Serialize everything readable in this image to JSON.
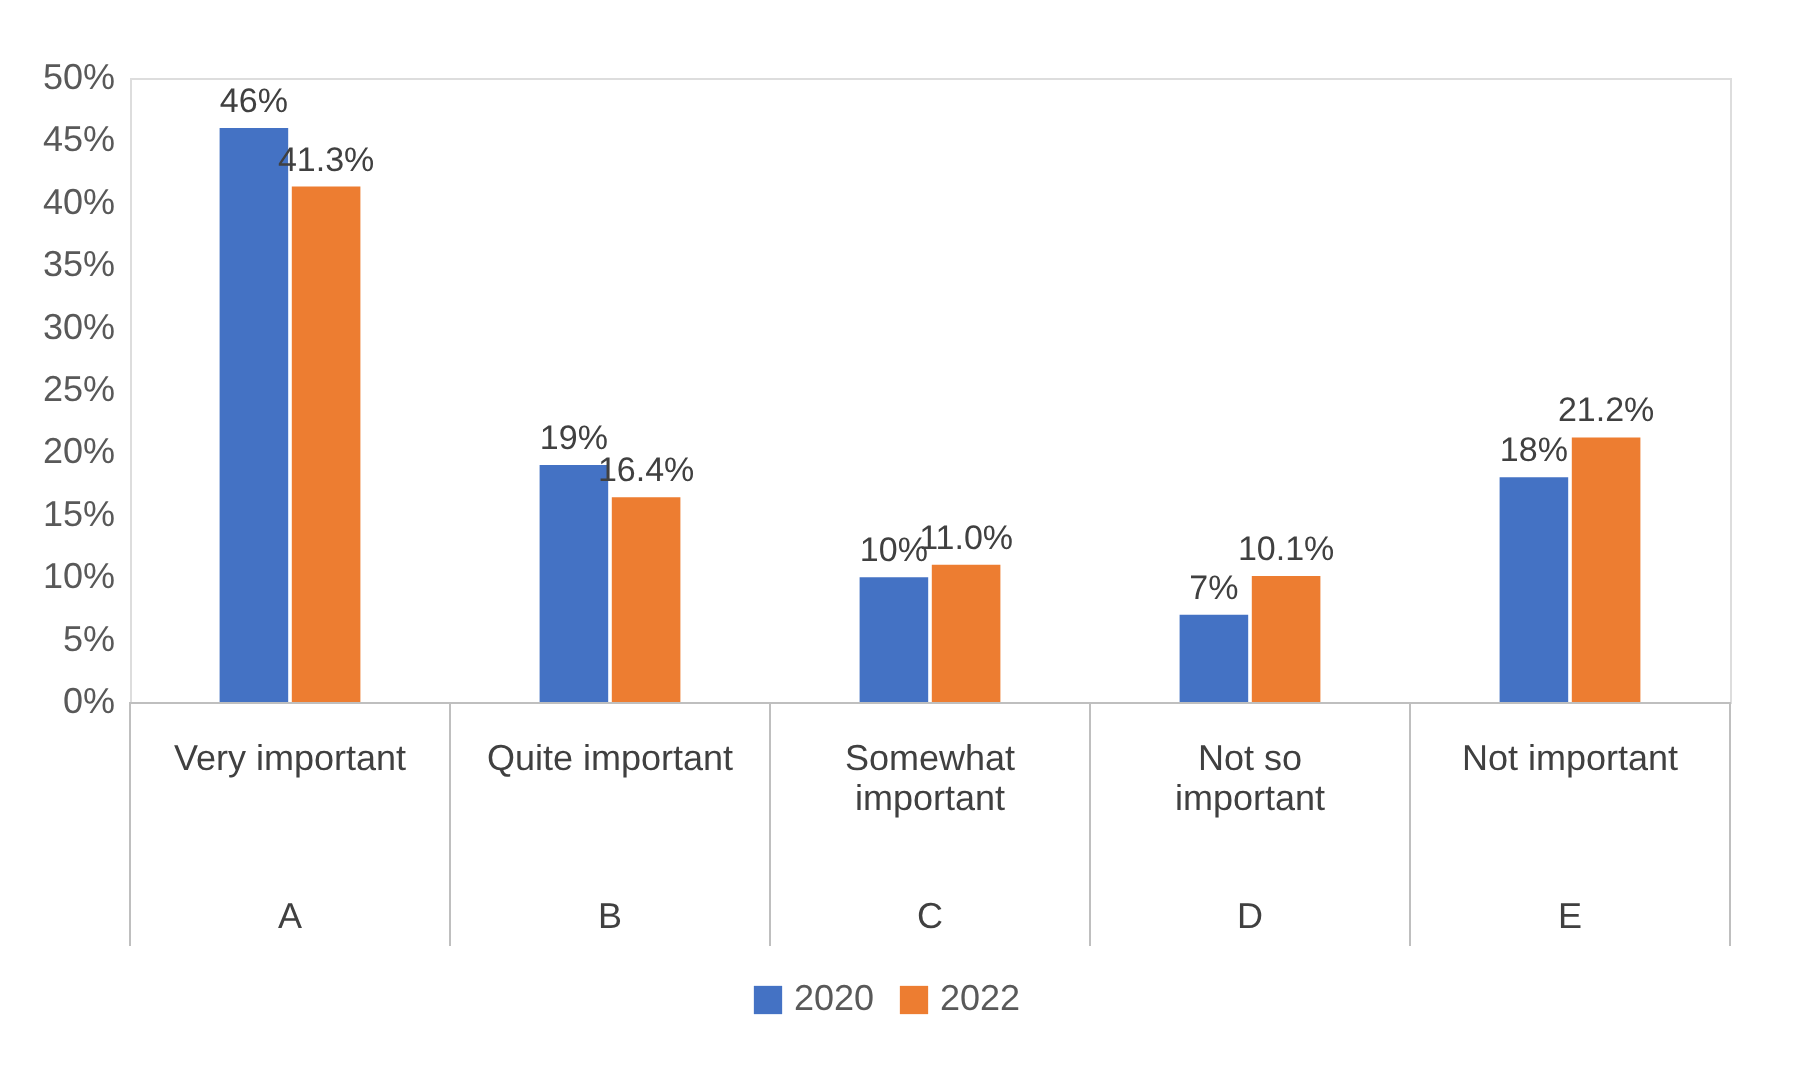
{
  "chart_data": {
    "type": "bar",
    "categories": [
      "Very important",
      "Quite important",
      "Somewhat important",
      "Not so important",
      "Not important"
    ],
    "annotations": [
      "A",
      "B",
      "C",
      "D",
      "E"
    ],
    "series": [
      {
        "name": "2020",
        "color": "#4472c4",
        "values": [
          46,
          19,
          10,
          7,
          18
        ],
        "value_labels": [
          "46%",
          "19%",
          "10%",
          "7%",
          "18%"
        ]
      },
      {
        "name": "2022",
        "color": "#ed7d31",
        "values": [
          41.3,
          16.4,
          11.0,
          10.1,
          21.2
        ],
        "value_labels": [
          "41.3%",
          "16.4%",
          "11.0%",
          "10.1%",
          "21.2%"
        ]
      }
    ],
    "ylim": [
      0,
      50
    ],
    "yticks": [
      {
        "value": 0,
        "label": "0%"
      },
      {
        "value": 5,
        "label": "5%"
      },
      {
        "value": 10,
        "label": "10%"
      },
      {
        "value": 15,
        "label": "15%"
      },
      {
        "value": 20,
        "label": "20%"
      },
      {
        "value": 25,
        "label": "25%"
      },
      {
        "value": 30,
        "label": "30%"
      },
      {
        "value": 35,
        "label": "35%"
      },
      {
        "value": 40,
        "label": "40%"
      },
      {
        "value": 45,
        "label": "45%"
      },
      {
        "value": 50,
        "label": "50%"
      }
    ],
    "grid": false,
    "legend": "bottom"
  }
}
